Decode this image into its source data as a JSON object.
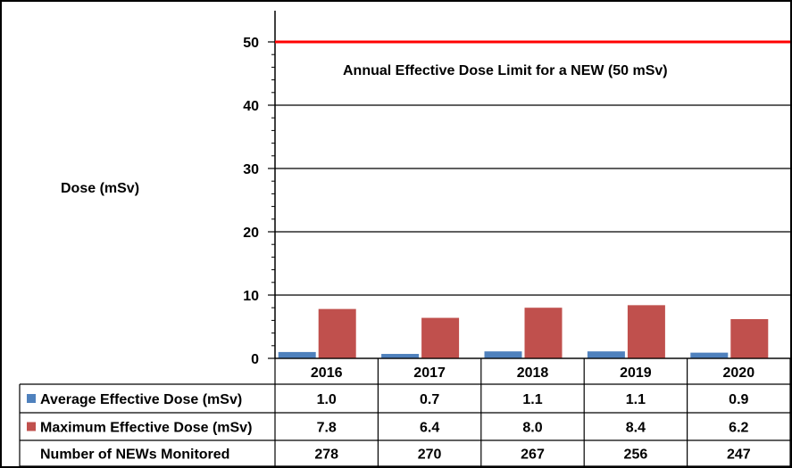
{
  "chart_data": {
    "type": "bar",
    "ylabel": "Dose (mSv)",
    "ylim": [
      0,
      50
    ],
    "yticks": [
      0,
      10,
      20,
      30,
      40,
      50
    ],
    "grid": true,
    "categories": [
      "2016",
      "2017",
      "2018",
      "2019",
      "2020"
    ],
    "series": [
      {
        "name": "Average Effective Dose (mSv)",
        "color": "#4F81BD",
        "values": [
          1.0,
          0.7,
          1.1,
          1.1,
          0.9
        ],
        "labels": [
          "1.0",
          "0.7",
          "1.1",
          "1.1",
          "0.9"
        ]
      },
      {
        "name": "Maximum Effective Dose (mSv)",
        "color": "#C0504D",
        "values": [
          7.8,
          6.4,
          8.0,
          8.4,
          6.2
        ],
        "labels": [
          "7.8",
          "6.4",
          "8.0",
          "8.4",
          "6.2"
        ]
      }
    ],
    "table_rows": [
      {
        "label": "Number of NEWs Monitored",
        "values": [
          "278",
          "270",
          "267",
          "256",
          "247"
        ]
      }
    ],
    "reference_line": {
      "value": 50,
      "color": "#FF0000",
      "label": "Annual Effective Dose Limit for a NEW (50 mSv)"
    }
  }
}
